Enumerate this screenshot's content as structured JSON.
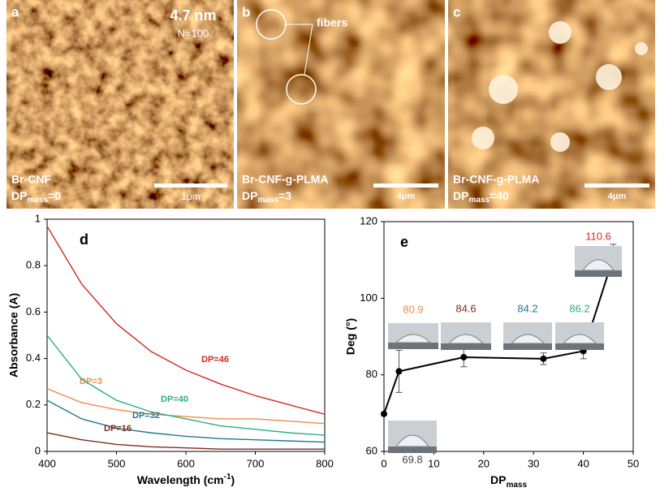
{
  "panels": [
    {
      "letter": "a",
      "label": "4.7 nm",
      "sublabel": "N=100",
      "name": "Br-CNF",
      "dp": "DP",
      "dp_sub": "mass",
      "dp_val": "=0",
      "scale": "1μm"
    },
    {
      "letter": "b",
      "annotation": "fibers",
      "name": "Br-CNF-g-PLMA",
      "dp": "DP",
      "dp_sub": "mass",
      "dp_val": "=3",
      "scale": "4μm"
    },
    {
      "letter": "c",
      "name": "Br-CNF-g-PLMA",
      "dp": "DP",
      "dp_sub": "mass",
      "dp_val": "=40",
      "scale": "4μm"
    }
  ],
  "chart_data": [
    {
      "type": "line",
      "panel": "d",
      "y_label": "Absorbance (A)",
      "x_label": "Wavelength (cm",
      "x_label_sup": "-1",
      "x_label_end": ")",
      "x": [
        400,
        450,
        500,
        550,
        600,
        650,
        700,
        750,
        800
      ],
      "series": [
        {
          "name": "DP=46",
          "color": "#d42a1e",
          "values": [
            0.97,
            0.72,
            0.55,
            0.43,
            0.35,
            0.29,
            0.24,
            0.2,
            0.16
          ]
        },
        {
          "name": "DP=3",
          "color": "#f08a4b",
          "values": [
            0.27,
            0.21,
            0.18,
            0.16,
            0.15,
            0.14,
            0.14,
            0.13,
            0.12
          ]
        },
        {
          "name": "DP=40",
          "color": "#2bb07f",
          "values": [
            0.5,
            0.31,
            0.22,
            0.17,
            0.14,
            0.11,
            0.095,
            0.08,
            0.07
          ]
        },
        {
          "name": "DP=32",
          "color": "#1f7a8c",
          "values": [
            0.22,
            0.14,
            0.1,
            0.08,
            0.065,
            0.055,
            0.05,
            0.045,
            0.04
          ]
        },
        {
          "name": "DP=16",
          "color": "#7b2e22",
          "values": [
            0.08,
            0.05,
            0.03,
            0.02,
            0.015,
            0.01,
            0.01,
            0.01,
            0.01
          ]
        }
      ],
      "xlim": [
        400,
        800
      ],
      "xticks": [
        400,
        500,
        600,
        700,
        800
      ],
      "ylim": [
        0,
        1
      ],
      "yticks": [
        0,
        0.2,
        0.4,
        0.6,
        0.8,
        1
      ]
    },
    {
      "type": "scatter",
      "panel": "e",
      "y_label": "Deg (°)",
      "x_label": "DP",
      "x_label_sub": "mass",
      "x": [
        0,
        3,
        16,
        32,
        40,
        46
      ],
      "values": [
        69.8,
        80.9,
        84.6,
        84.2,
        86.2,
        110.6
      ],
      "errors": [
        null,
        5.5,
        2.5,
        1.5,
        2,
        3.5
      ],
      "color": "#000000",
      "label_colors": [
        "#444444",
        "#f08a4b",
        "#7b2e22",
        "#1f7a8c",
        "#2bb07f",
        "#d42a1e"
      ],
      "xlim": [
        0,
        50
      ],
      "xticks": [
        0,
        10,
        20,
        30,
        40,
        50
      ],
      "ylim": [
        60,
        120
      ],
      "yticks": [
        60,
        80,
        100,
        120
      ]
    }
  ]
}
